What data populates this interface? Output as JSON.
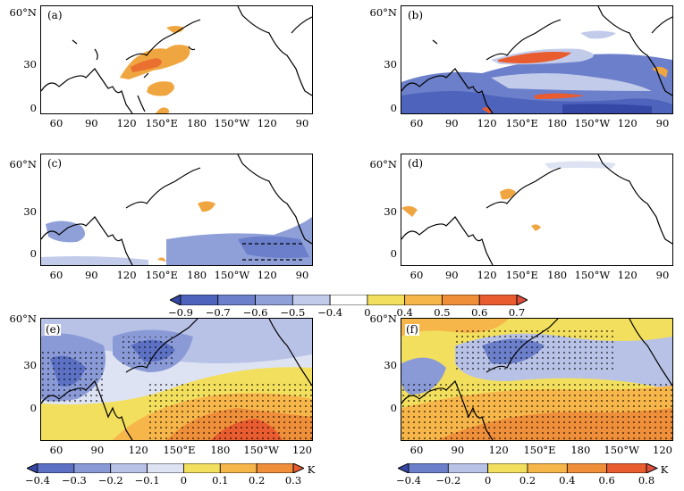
{
  "panels": [
    {
      "label": "(a)",
      "y_ticks": [
        "60°N",
        "30",
        "0"
      ],
      "x_ticks": [
        "60",
        "90",
        "120",
        "150°E",
        "180",
        "150°W",
        "120",
        "90"
      ]
    },
    {
      "label": "(b)",
      "y_ticks": [
        "60°N",
        "30",
        "0"
      ],
      "x_ticks": [
        "60",
        "90",
        "120",
        "150°E",
        "180",
        "150°W",
        "120",
        "90"
      ]
    },
    {
      "label": "(c)",
      "y_ticks": [
        "60°N",
        "30",
        "0"
      ],
      "x_ticks": [
        "60",
        "90",
        "120",
        "150°E",
        "180",
        "150°W",
        "120",
        "90"
      ]
    },
    {
      "label": "(d)",
      "y_ticks": [
        "60°N",
        "30",
        "0"
      ],
      "x_ticks": [
        "60",
        "90",
        "120",
        "150°E",
        "180",
        "150°W",
        "120",
        "90"
      ]
    },
    {
      "label": "(e)",
      "y_ticks": [
        "60°N",
        "30",
        "0"
      ],
      "x_ticks": [
        "60",
        "90",
        "120",
        "150°E",
        "180",
        "150°W",
        "120"
      ]
    },
    {
      "label": "(f)",
      "y_ticks": [
        "60°N",
        "30",
        "0"
      ],
      "x_ticks": [
        "60",
        "90",
        "120",
        "150°E",
        "180",
        "150°W",
        "120"
      ]
    }
  ],
  "colorbars": {
    "main": {
      "ticks": [
        "−0.9",
        "−0.7",
        "−0.6",
        "−0.5",
        "−0.4",
        "0",
        "0.4",
        "0.5",
        "0.6",
        "0.7"
      ],
      "colors": [
        "#3548a6",
        "#4d63bc",
        "#6b7fca",
        "#8f9fd8",
        "#c2cbea",
        "#ffffff",
        "#f2df5e",
        "#f7b64a",
        "#f08f3a",
        "#e95c2f",
        "#e14f3c"
      ]
    },
    "e": {
      "ticks": [
        "−0.4",
        "−0.3",
        "−0.2",
        "−0.1",
        "0",
        "0.1",
        "0.2",
        "0.3"
      ],
      "unit": "K",
      "colors": [
        "#3548a6",
        "#5d71c4",
        "#8a9ad6",
        "#b8c2e6",
        "#dde3f3",
        "#f2df5e",
        "#f7b64a",
        "#f08f3a",
        "#e95c2f"
      ]
    },
    "f": {
      "ticks": [
        "−0.4",
        "−0.2",
        "0",
        "0.2",
        "0.4",
        "0.6",
        "0.8"
      ],
      "unit": "K",
      "colors": [
        "#3548a6",
        "#6b7fca",
        "#b8c2e6",
        "#f2df5e",
        "#f7b64a",
        "#f08f3a",
        "#e95c2f",
        "#e14f3c"
      ]
    }
  }
}
